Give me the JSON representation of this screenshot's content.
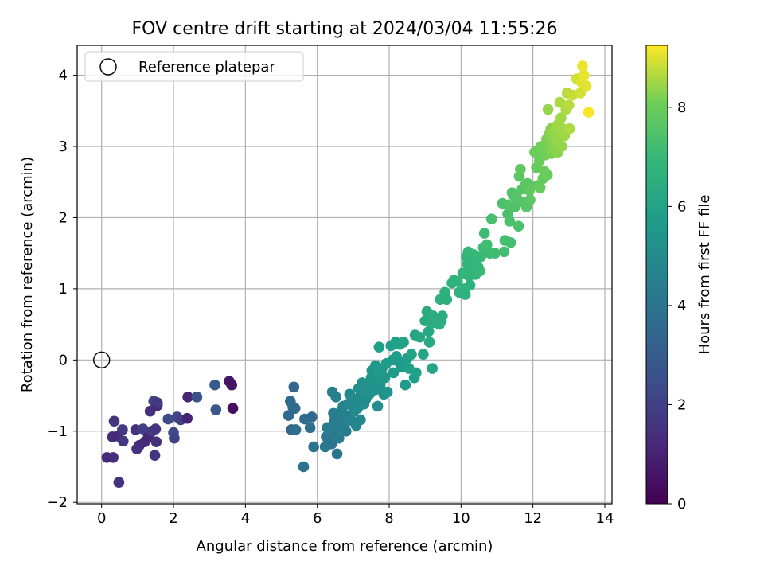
{
  "chart_data": {
    "type": "scatter",
    "title": "FOV centre drift starting at 2024/03/04 11:55:26",
    "xlabel": "Angular distance from reference (arcmin)",
    "ylabel": "Rotation from reference (arcmin)",
    "xlim": [
      -0.68,
      14.2
    ],
    "ylim": [
      -2.02,
      4.42
    ],
    "xticks": [
      0,
      2,
      4,
      6,
      8,
      10,
      12,
      14
    ],
    "yticks": [
      -2,
      -1,
      0,
      1,
      2,
      3,
      4
    ],
    "grid": true,
    "legend": {
      "position": "top-left",
      "entries": [
        {
          "label": "Reference platepar",
          "marker": "open-circle",
          "x": 0,
          "y": 0
        }
      ]
    },
    "colorbar": {
      "label": "Hours from first FF file",
      "colormap": "viridis",
      "range": [
        0,
        9.25
      ],
      "ticks": [
        0,
        2,
        4,
        6,
        8
      ]
    },
    "point_color_note": "c = hours from first FF file",
    "points": [
      {
        "x": 0.15,
        "y": -1.37,
        "c": 1.2
      },
      {
        "x": 0.32,
        "y": -1.37,
        "c": 1.3
      },
      {
        "x": 0.48,
        "y": -1.72,
        "c": 1.5
      },
      {
        "x": 0.3,
        "y": -1.08,
        "c": 1.3
      },
      {
        "x": 0.35,
        "y": -0.86,
        "c": 1.6
      },
      {
        "x": 0.45,
        "y": -1.07,
        "c": 1.2
      },
      {
        "x": 0.58,
        "y": -0.98,
        "c": 1.8
      },
      {
        "x": 0.6,
        "y": -1.14,
        "c": 1.7
      },
      {
        "x": 0.95,
        "y": -0.98,
        "c": 1.5
      },
      {
        "x": 0.98,
        "y": -1.25,
        "c": 1.6
      },
      {
        "x": 1.05,
        "y": -1.2,
        "c": 1.4
      },
      {
        "x": 1.15,
        "y": -0.97,
        "c": 1.9
      },
      {
        "x": 1.2,
        "y": -1.15,
        "c": 1.3
      },
      {
        "x": 1.3,
        "y": -1.08,
        "c": 1.1
      },
      {
        "x": 1.35,
        "y": -0.72,
        "c": 1.4
      },
      {
        "x": 1.4,
        "y": -1.0,
        "c": 1.8
      },
      {
        "x": 1.45,
        "y": -0.58,
        "c": 2.0
      },
      {
        "x": 1.48,
        "y": -1.34,
        "c": 1.7
      },
      {
        "x": 1.5,
        "y": -0.97,
        "c": 1.6
      },
      {
        "x": 1.52,
        "y": -1.15,
        "c": 1.5
      },
      {
        "x": 1.55,
        "y": -0.64,
        "c": 1.2
      },
      {
        "x": 1.55,
        "y": -0.6,
        "c": 1.8
      },
      {
        "x": 1.85,
        "y": -0.83,
        "c": 2.3
      },
      {
        "x": 2.0,
        "y": -1.02,
        "c": 2.4
      },
      {
        "x": 2.02,
        "y": -1.1,
        "c": 2.1
      },
      {
        "x": 2.1,
        "y": -0.8,
        "c": 2.2
      },
      {
        "x": 2.2,
        "y": -0.84,
        "c": 2.0
      },
      {
        "x": 2.38,
        "y": -0.82,
        "c": 1.0
      },
      {
        "x": 2.4,
        "y": -0.52,
        "c": 1.1
      },
      {
        "x": 2.65,
        "y": -0.52,
        "c": 2.6
      },
      {
        "x": 3.15,
        "y": -0.35,
        "c": 2.9
      },
      {
        "x": 3.18,
        "y": -0.7,
        "c": 2.8
      },
      {
        "x": 3.55,
        "y": -0.3,
        "c": 0.6
      },
      {
        "x": 3.62,
        "y": -0.35,
        "c": 0.5
      },
      {
        "x": 3.65,
        "y": -0.68,
        "c": 0.4
      },
      {
        "x": 5.2,
        "y": -0.78,
        "c": 3.5
      },
      {
        "x": 5.25,
        "y": -0.58,
        "c": 3.6
      },
      {
        "x": 5.28,
        "y": -0.98,
        "c": 3.4
      },
      {
        "x": 5.32,
        "y": -0.66,
        "c": 3.7
      },
      {
        "x": 5.35,
        "y": -0.38,
        "c": 3.5
      },
      {
        "x": 5.4,
        "y": -0.98,
        "c": 3.8
      },
      {
        "x": 5.38,
        "y": -0.68,
        "c": 3.6
      },
      {
        "x": 5.62,
        "y": -1.5,
        "c": 3.9
      },
      {
        "x": 5.65,
        "y": -0.83,
        "c": 3.7
      },
      {
        "x": 5.8,
        "y": -0.95,
        "c": 3.8
      },
      {
        "x": 5.85,
        "y": -0.8,
        "c": 3.6
      },
      {
        "x": 5.9,
        "y": -1.22,
        "c": 3.9
      },
      {
        "x": 6.22,
        "y": -1.22,
        "c": 4.2
      },
      {
        "x": 6.25,
        "y": -1.08,
        "c": 4.1
      },
      {
        "x": 6.28,
        "y": -0.95,
        "c": 4.3
      },
      {
        "x": 6.35,
        "y": -0.98,
        "c": 4.4
      },
      {
        "x": 6.4,
        "y": -1.18,
        "c": 4.0
      },
      {
        "x": 6.42,
        "y": -0.45,
        "c": 4.5
      },
      {
        "x": 6.45,
        "y": -0.75,
        "c": 4.3
      },
      {
        "x": 6.48,
        "y": -0.85,
        "c": 4.4
      },
      {
        "x": 6.5,
        "y": -1.05,
        "c": 4.2
      },
      {
        "x": 6.52,
        "y": -0.52,
        "c": 4.6
      },
      {
        "x": 6.55,
        "y": -1.32,
        "c": 4.1
      },
      {
        "x": 6.58,
        "y": -0.95,
        "c": 4.5
      },
      {
        "x": 6.6,
        "y": -1.1,
        "c": 4.3
      },
      {
        "x": 6.65,
        "y": -0.82,
        "c": 4.4
      },
      {
        "x": 6.68,
        "y": -0.7,
        "c": 4.6
      },
      {
        "x": 6.72,
        "y": -0.65,
        "c": 4.7
      },
      {
        "x": 6.75,
        "y": -0.92,
        "c": 4.5
      },
      {
        "x": 6.8,
        "y": -1.0,
        "c": 4.4
      },
      {
        "x": 6.85,
        "y": -0.62,
        "c": 4.8
      },
      {
        "x": 6.88,
        "y": -0.78,
        "c": 4.6
      },
      {
        "x": 6.9,
        "y": -0.48,
        "c": 4.9
      },
      {
        "x": 6.95,
        "y": -0.85,
        "c": 4.7
      },
      {
        "x": 7.0,
        "y": -0.6,
        "c": 4.8
      },
      {
        "x": 7.02,
        "y": -0.72,
        "c": 4.9
      },
      {
        "x": 7.05,
        "y": -0.55,
        "c": 5.0
      },
      {
        "x": 7.08,
        "y": -0.92,
        "c": 4.8
      },
      {
        "x": 7.12,
        "y": -0.68,
        "c": 5.0
      },
      {
        "x": 7.15,
        "y": -0.4,
        "c": 5.1
      },
      {
        "x": 7.18,
        "y": -0.52,
        "c": 5.0
      },
      {
        "x": 7.2,
        "y": -0.84,
        "c": 4.9
      },
      {
        "x": 7.25,
        "y": -0.32,
        "c": 5.2
      },
      {
        "x": 7.3,
        "y": -0.62,
        "c": 5.1
      },
      {
        "x": 7.32,
        "y": -0.45,
        "c": 5.2
      },
      {
        "x": 7.35,
        "y": -0.55,
        "c": 5.0
      },
      {
        "x": 7.4,
        "y": -0.35,
        "c": 5.3
      },
      {
        "x": 7.45,
        "y": -0.48,
        "c": 5.2
      },
      {
        "x": 7.5,
        "y": -0.25,
        "c": 5.4
      },
      {
        "x": 7.52,
        "y": -0.15,
        "c": 5.5
      },
      {
        "x": 7.55,
        "y": -0.38,
        "c": 5.3
      },
      {
        "x": 7.6,
        "y": -0.42,
        "c": 5.2
      },
      {
        "x": 7.62,
        "y": -0.08,
        "c": 5.5
      },
      {
        "x": 7.65,
        "y": -0.28,
        "c": 5.4
      },
      {
        "x": 7.68,
        "y": -0.65,
        "c": 5.1
      },
      {
        "x": 7.7,
        "y": -0.18,
        "c": 5.6
      },
      {
        "x": 7.72,
        "y": 0.18,
        "c": 5.8
      },
      {
        "x": 7.75,
        "y": -0.35,
        "c": 5.4
      },
      {
        "x": 7.8,
        "y": -0.12,
        "c": 5.6
      },
      {
        "x": 7.85,
        "y": -0.48,
        "c": 5.3
      },
      {
        "x": 7.88,
        "y": -0.25,
        "c": 5.5
      },
      {
        "x": 7.92,
        "y": -0.05,
        "c": 5.7
      },
      {
        "x": 7.95,
        "y": -0.45,
        "c": 5.4
      },
      {
        "x": 8.05,
        "y": 0.2,
        "c": 5.8
      },
      {
        "x": 8.1,
        "y": 0.0,
        "c": 5.7
      },
      {
        "x": 8.12,
        "y": -0.18,
        "c": 5.6
      },
      {
        "x": 8.18,
        "y": 0.25,
        "c": 5.9
      },
      {
        "x": 8.2,
        "y": 0.05,
        "c": 5.8
      },
      {
        "x": 8.25,
        "y": -0.02,
        "c": 5.7
      },
      {
        "x": 8.3,
        "y": 0.22,
        "c": 5.9
      },
      {
        "x": 8.35,
        "y": -0.1,
        "c": 5.7
      },
      {
        "x": 8.4,
        "y": 0.25,
        "c": 6.0
      },
      {
        "x": 8.45,
        "y": -0.35,
        "c": 5.6
      },
      {
        "x": 8.5,
        "y": 0.02,
        "c": 5.8
      },
      {
        "x": 8.55,
        "y": -0.12,
        "c": 5.9
      },
      {
        "x": 8.62,
        "y": 0.08,
        "c": 6.0
      },
      {
        "x": 8.7,
        "y": -0.25,
        "c": 5.8
      },
      {
        "x": 8.72,
        "y": 0.35,
        "c": 6.1
      },
      {
        "x": 8.75,
        "y": -0.18,
        "c": 5.9
      },
      {
        "x": 8.85,
        "y": 0.32,
        "c": 6.2
      },
      {
        "x": 8.95,
        "y": 0.08,
        "c": 6.1
      },
      {
        "x": 9.0,
        "y": 0.55,
        "c": 6.3
      },
      {
        "x": 9.05,
        "y": 0.68,
        "c": 6.4
      },
      {
        "x": 9.1,
        "y": 0.4,
        "c": 6.2
      },
      {
        "x": 9.12,
        "y": 0.25,
        "c": 6.3
      },
      {
        "x": 9.18,
        "y": 0.52,
        "c": 6.4
      },
      {
        "x": 9.2,
        "y": -0.12,
        "c": 6.1
      },
      {
        "x": 9.22,
        "y": 0.62,
        "c": 6.5
      },
      {
        "x": 9.3,
        "y": 0.58,
        "c": 6.4
      },
      {
        "x": 9.4,
        "y": 0.5,
        "c": 6.5
      },
      {
        "x": 9.42,
        "y": 0.85,
        "c": 6.6
      },
      {
        "x": 9.45,
        "y": 0.55,
        "c": 6.5
      },
      {
        "x": 9.48,
        "y": 0.62,
        "c": 6.4
      },
      {
        "x": 9.55,
        "y": 0.95,
        "c": 6.6
      },
      {
        "x": 9.6,
        "y": 0.85,
        "c": 6.5
      },
      {
        "x": 9.75,
        "y": 1.08,
        "c": 6.7
      },
      {
        "x": 9.8,
        "y": 1.12,
        "c": 6.6
      },
      {
        "x": 9.9,
        "y": 1.1,
        "c": 6.7
      },
      {
        "x": 9.95,
        "y": 0.95,
        "c": 6.6
      },
      {
        "x": 10.05,
        "y": 1.22,
        "c": 6.8
      },
      {
        "x": 10.1,
        "y": 1.0,
        "c": 6.7
      },
      {
        "x": 10.12,
        "y": 0.92,
        "c": 6.6
      },
      {
        "x": 10.15,
        "y": 1.45,
        "c": 6.9
      },
      {
        "x": 10.18,
        "y": 1.35,
        "c": 6.8
      },
      {
        "x": 10.2,
        "y": 1.52,
        "c": 6.9
      },
      {
        "x": 10.22,
        "y": 1.18,
        "c": 6.8
      },
      {
        "x": 10.25,
        "y": 1.05,
        "c": 6.7
      },
      {
        "x": 10.3,
        "y": 1.28,
        "c": 6.9
      },
      {
        "x": 10.35,
        "y": 1.48,
        "c": 7.0
      },
      {
        "x": 10.4,
        "y": 1.2,
        "c": 6.8
      },
      {
        "x": 10.42,
        "y": 1.38,
        "c": 6.9
      },
      {
        "x": 10.48,
        "y": 1.3,
        "c": 6.9
      },
      {
        "x": 10.52,
        "y": 1.25,
        "c": 7.0
      },
      {
        "x": 10.55,
        "y": 1.45,
        "c": 7.0
      },
      {
        "x": 10.62,
        "y": 1.58,
        "c": 7.1
      },
      {
        "x": 10.65,
        "y": 1.78,
        "c": 7.1
      },
      {
        "x": 10.72,
        "y": 1.62,
        "c": 7.2
      },
      {
        "x": 10.8,
        "y": 1.5,
        "c": 7.1
      },
      {
        "x": 10.85,
        "y": 1.98,
        "c": 7.3
      },
      {
        "x": 10.95,
        "y": 1.5,
        "c": 7.2
      },
      {
        "x": 11.15,
        "y": 2.2,
        "c": 7.4
      },
      {
        "x": 11.2,
        "y": 1.52,
        "c": 7.2
      },
      {
        "x": 11.22,
        "y": 1.68,
        "c": 7.3
      },
      {
        "x": 11.3,
        "y": 2.05,
        "c": 7.4
      },
      {
        "x": 11.32,
        "y": 2.18,
        "c": 7.5
      },
      {
        "x": 11.35,
        "y": 1.95,
        "c": 7.4
      },
      {
        "x": 11.38,
        "y": 1.65,
        "c": 7.3
      },
      {
        "x": 11.42,
        "y": 2.35,
        "c": 7.6
      },
      {
        "x": 11.45,
        "y": 2.32,
        "c": 7.5
      },
      {
        "x": 11.5,
        "y": 2.15,
        "c": 7.5
      },
      {
        "x": 11.55,
        "y": 2.28,
        "c": 7.6
      },
      {
        "x": 11.6,
        "y": 1.88,
        "c": 7.4
      },
      {
        "x": 11.62,
        "y": 2.58,
        "c": 7.7
      },
      {
        "x": 11.65,
        "y": 2.68,
        "c": 7.8
      },
      {
        "x": 11.7,
        "y": 2.4,
        "c": 7.6
      },
      {
        "x": 11.72,
        "y": 2.22,
        "c": 7.6
      },
      {
        "x": 11.78,
        "y": 2.45,
        "c": 7.7
      },
      {
        "x": 11.82,
        "y": 2.15,
        "c": 7.6
      },
      {
        "x": 11.85,
        "y": 2.48,
        "c": 7.7
      },
      {
        "x": 11.9,
        "y": 2.38,
        "c": 7.8
      },
      {
        "x": 11.92,
        "y": 2.25,
        "c": 7.7
      },
      {
        "x": 12.05,
        "y": 2.92,
        "c": 8.0
      },
      {
        "x": 12.1,
        "y": 2.7,
        "c": 7.9
      },
      {
        "x": 12.12,
        "y": 2.45,
        "c": 7.8
      },
      {
        "x": 12.15,
        "y": 2.95,
        "c": 8.0
      },
      {
        "x": 12.18,
        "y": 2.8,
        "c": 8.0
      },
      {
        "x": 12.2,
        "y": 2.42,
        "c": 7.9
      },
      {
        "x": 12.22,
        "y": 3.0,
        "c": 8.1
      },
      {
        "x": 12.28,
        "y": 2.55,
        "c": 7.9
      },
      {
        "x": 12.32,
        "y": 2.65,
        "c": 8.0
      },
      {
        "x": 12.35,
        "y": 2.88,
        "c": 8.1
      },
      {
        "x": 12.38,
        "y": 3.1,
        "c": 8.2
      },
      {
        "x": 12.4,
        "y": 2.6,
        "c": 8.0
      },
      {
        "x": 12.42,
        "y": 3.52,
        "c": 8.4
      },
      {
        "x": 12.45,
        "y": 3.18,
        "c": 8.3
      },
      {
        "x": 12.48,
        "y": 2.98,
        "c": 8.2
      },
      {
        "x": 12.5,
        "y": 3.25,
        "c": 8.3
      },
      {
        "x": 12.52,
        "y": 2.9,
        "c": 8.2
      },
      {
        "x": 12.55,
        "y": 3.05,
        "c": 8.3
      },
      {
        "x": 12.58,
        "y": 3.2,
        "c": 8.4
      },
      {
        "x": 12.62,
        "y": 2.95,
        "c": 8.3
      },
      {
        "x": 12.65,
        "y": 3.12,
        "c": 8.4
      },
      {
        "x": 12.68,
        "y": 3.3,
        "c": 8.5
      },
      {
        "x": 12.7,
        "y": 2.92,
        "c": 8.3
      },
      {
        "x": 12.72,
        "y": 3.05,
        "c": 8.4
      },
      {
        "x": 12.75,
        "y": 3.62,
        "c": 8.6
      },
      {
        "x": 12.78,
        "y": 3.4,
        "c": 8.5
      },
      {
        "x": 12.8,
        "y": 3.0,
        "c": 8.4
      },
      {
        "x": 12.82,
        "y": 3.25,
        "c": 8.5
      },
      {
        "x": 12.88,
        "y": 3.15,
        "c": 8.5
      },
      {
        "x": 12.92,
        "y": 3.52,
        "c": 8.6
      },
      {
        "x": 12.95,
        "y": 3.75,
        "c": 8.7
      },
      {
        "x": 13.0,
        "y": 3.58,
        "c": 8.7
      },
      {
        "x": 13.02,
        "y": 3.25,
        "c": 8.6
      },
      {
        "x": 13.1,
        "y": 3.72,
        "c": 8.8
      },
      {
        "x": 13.22,
        "y": 3.95,
        "c": 8.9
      },
      {
        "x": 13.32,
        "y": 3.75,
        "c": 8.9
      },
      {
        "x": 13.35,
        "y": 3.9,
        "c": 9.0
      },
      {
        "x": 13.38,
        "y": 4.13,
        "c": 9.1
      },
      {
        "x": 13.42,
        "y": 4.0,
        "c": 9.1
      },
      {
        "x": 13.48,
        "y": 3.85,
        "c": 9.0
      },
      {
        "x": 13.55,
        "y": 3.48,
        "c": 9.2
      }
    ]
  }
}
